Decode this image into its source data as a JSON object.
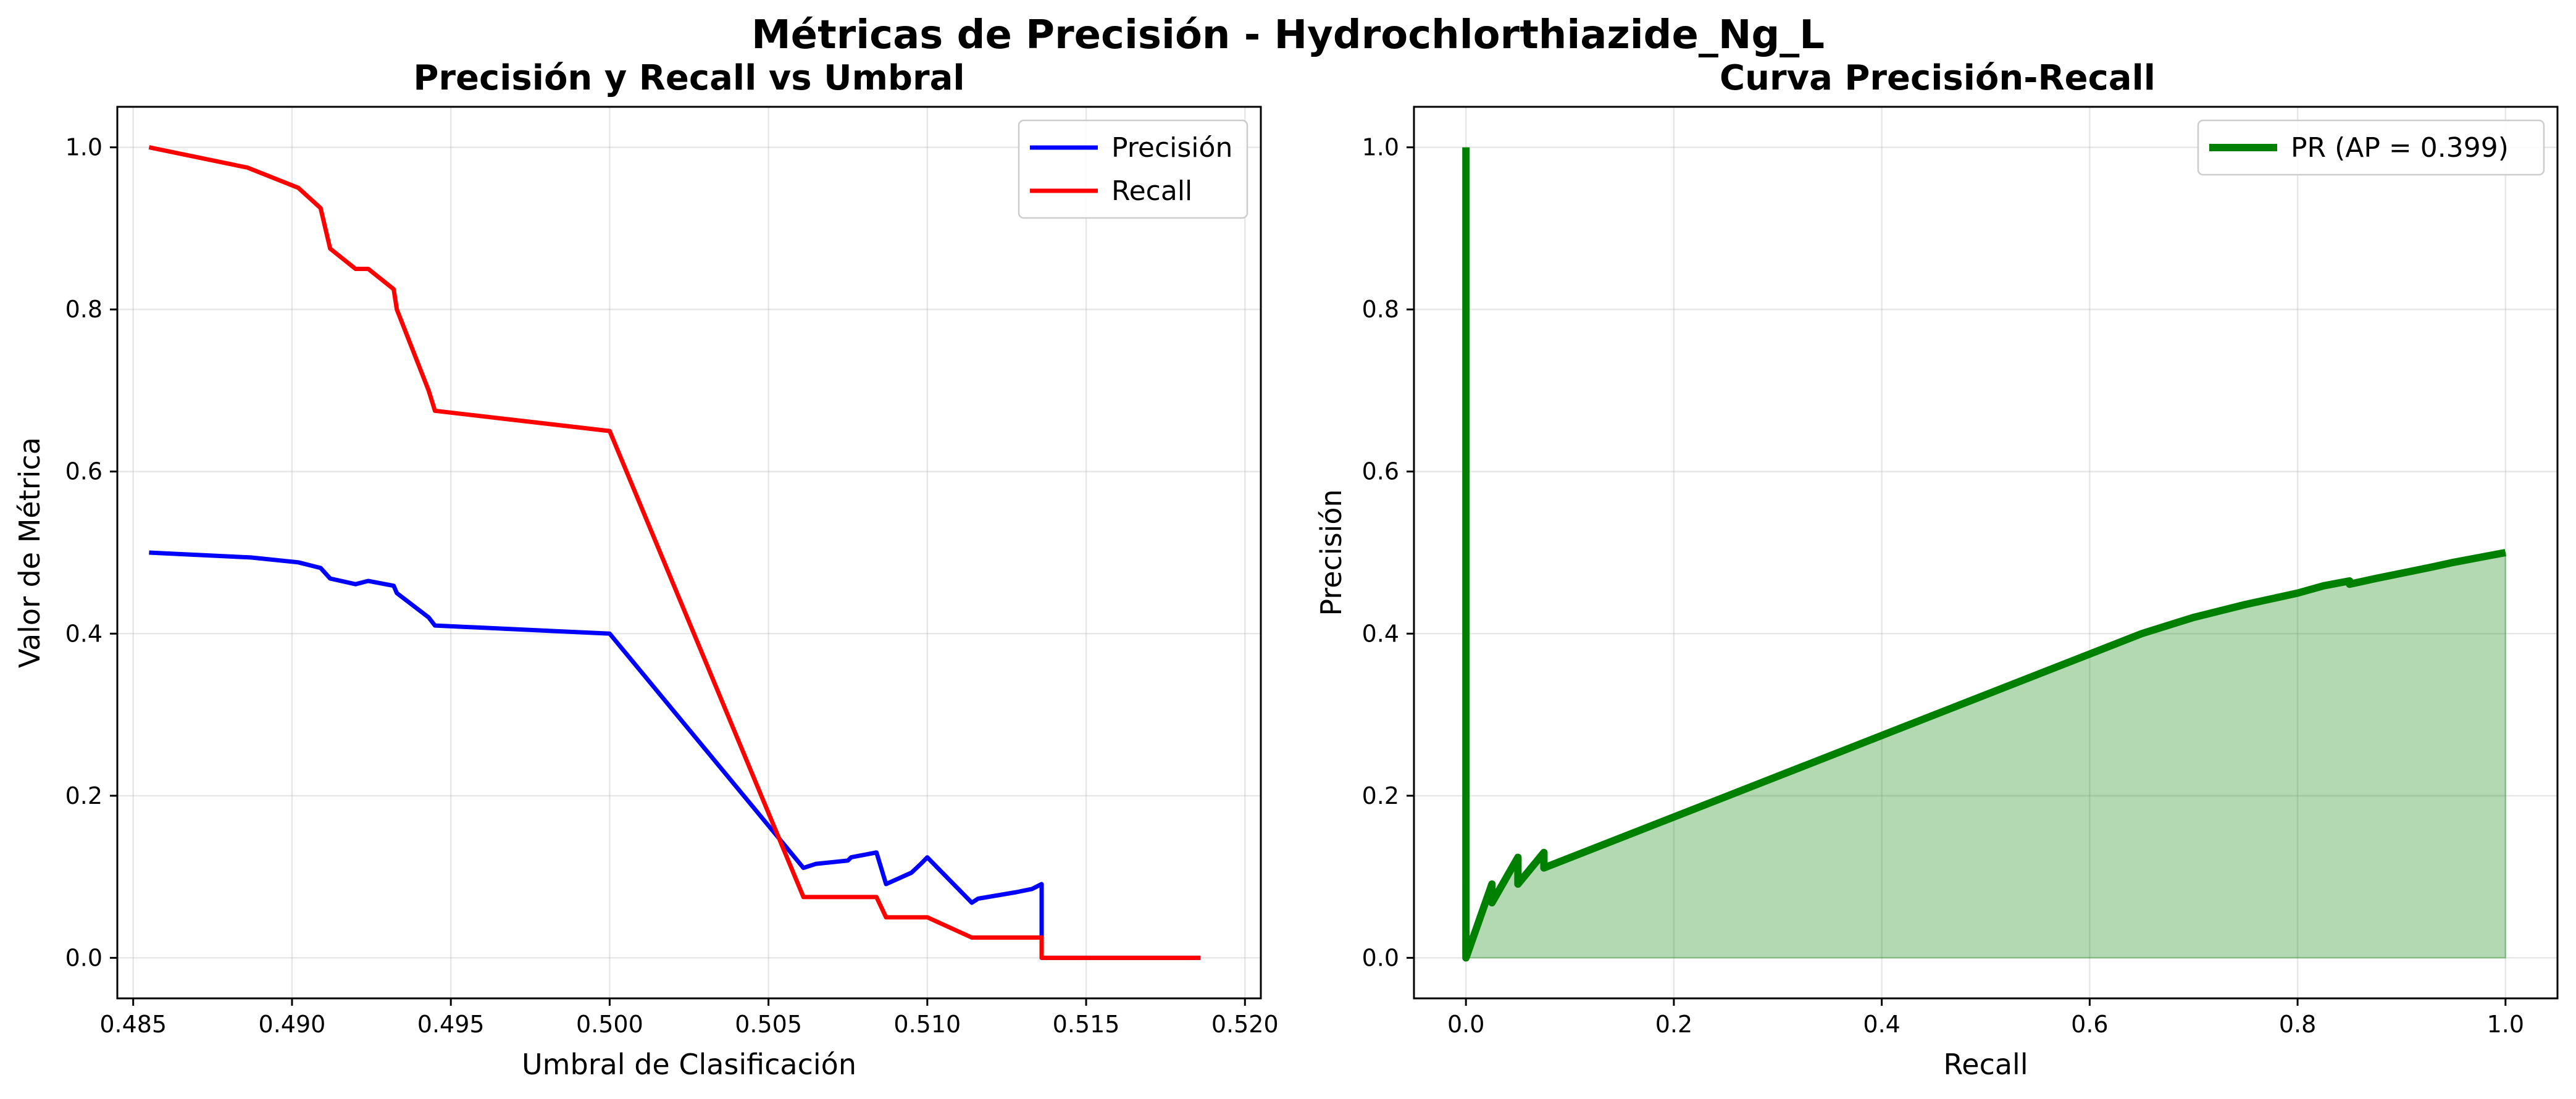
{
  "figure": {
    "suptitle": "Métricas de Precisión - Hydrochlorthiazide_Ng_L"
  },
  "chart_data": [
    {
      "type": "line",
      "title": "Precisión y Recall vs Umbral",
      "xlabel": "Umbral de Clasificación",
      "ylabel": "Valor de Métrica",
      "xlim": [
        0.4845,
        0.5205
      ],
      "ylim": [
        -0.05,
        1.05
      ],
      "xticks": [
        0.485,
        0.49,
        0.495,
        0.5,
        0.505,
        0.51,
        0.515,
        0.52
      ],
      "xtick_labels": [
        "0.485",
        "0.490",
        "0.495",
        "0.500",
        "0.505",
        "0.510",
        "0.515",
        "0.520"
      ],
      "yticks": [
        0.0,
        0.2,
        0.4,
        0.6,
        0.8,
        1.0
      ],
      "ytick_labels": [
        "0.0",
        "0.2",
        "0.4",
        "0.6",
        "0.8",
        "1.0"
      ],
      "grid": true,
      "legend_position": "upper right",
      "series": [
        {
          "name": "Precisión",
          "color": "#0000ff",
          "points": [
            [
              0.4855,
              0.5
            ],
            [
              0.4887,
              0.494
            ],
            [
              0.4902,
              0.488
            ],
            [
              0.4909,
              0.481
            ],
            [
              0.4912,
              0.468
            ],
            [
              0.492,
              0.461
            ],
            [
              0.4924,
              0.465
            ],
            [
              0.4932,
              0.459
            ],
            [
              0.4933,
              0.45
            ],
            [
              0.4943,
              0.42
            ],
            [
              0.4945,
              0.41
            ],
            [
              0.5,
              0.4
            ],
            [
              0.5061,
              0.111
            ],
            [
              0.5065,
              0.116
            ],
            [
              0.5075,
              0.12
            ],
            [
              0.5076,
              0.124
            ],
            [
              0.5084,
              0.13
            ],
            [
              0.5087,
              0.091
            ],
            [
              0.5095,
              0.105
            ],
            [
              0.5098,
              0.116
            ],
            [
              0.51,
              0.124
            ],
            [
              0.5114,
              0.068
            ],
            [
              0.5116,
              0.073
            ],
            [
              0.5128,
              0.081
            ],
            [
              0.5133,
              0.085
            ],
            [
              0.5136,
              0.091
            ],
            [
              0.5136,
              0.0
            ],
            [
              0.5186,
              0.0
            ]
          ]
        },
        {
          "name": "Recall",
          "color": "#ff0000",
          "points": [
            [
              0.4855,
              1.0
            ],
            [
              0.4886,
              0.975
            ],
            [
              0.4902,
              0.95
            ],
            [
              0.4909,
              0.925
            ],
            [
              0.4912,
              0.875
            ],
            [
              0.492,
              0.85
            ],
            [
              0.4924,
              0.85
            ],
            [
              0.4932,
              0.825
            ],
            [
              0.4933,
              0.8
            ],
            [
              0.4937,
              0.76
            ],
            [
              0.4943,
              0.7
            ],
            [
              0.4945,
              0.675
            ],
            [
              0.5,
              0.65
            ],
            [
              0.5061,
              0.075
            ],
            [
              0.5084,
              0.075
            ],
            [
              0.5087,
              0.05
            ],
            [
              0.51,
              0.05
            ],
            [
              0.5114,
              0.025
            ],
            [
              0.5136,
              0.025
            ],
            [
              0.5136,
              0.0
            ],
            [
              0.5186,
              0.0
            ]
          ]
        }
      ]
    },
    {
      "type": "area",
      "title": "Curva Precisión-Recall",
      "xlabel": "Recall",
      "ylabel": "Precisión",
      "xlim": [
        -0.05,
        1.05
      ],
      "ylim": [
        -0.05,
        1.05
      ],
      "xticks": [
        0.0,
        0.2,
        0.4,
        0.6,
        0.8,
        1.0
      ],
      "xtick_labels": [
        "0.0",
        "0.2",
        "0.4",
        "0.6",
        "0.8",
        "1.0"
      ],
      "yticks": [
        0.0,
        0.2,
        0.4,
        0.6,
        0.8,
        1.0
      ],
      "ytick_labels": [
        "0.0",
        "0.2",
        "0.4",
        "0.6",
        "0.8",
        "1.0"
      ],
      "grid": true,
      "legend_position": "upper right",
      "series": [
        {
          "name": "PR (AP = 0.399)",
          "color": "#008000",
          "fill_color": "#008000",
          "fill_opacity": 0.3,
          "points": [
            [
              0.0,
              1.0
            ],
            [
              0.0,
              0.0
            ],
            [
              0.025,
              0.091
            ],
            [
              0.025,
              0.068
            ],
            [
              0.05,
              0.124
            ],
            [
              0.05,
              0.091
            ],
            [
              0.075,
              0.13
            ],
            [
              0.075,
              0.111
            ],
            [
              0.65,
              0.4
            ],
            [
              0.675,
              0.41
            ],
            [
              0.7,
              0.42
            ],
            [
              0.75,
              0.436
            ],
            [
              0.8,
              0.45
            ],
            [
              0.825,
              0.459
            ],
            [
              0.85,
              0.465
            ],
            [
              0.85,
              0.461
            ],
            [
              0.875,
              0.468
            ],
            [
              0.925,
              0.481
            ],
            [
              0.95,
              0.488
            ],
            [
              0.975,
              0.494
            ],
            [
              1.0,
              0.5
            ]
          ]
        }
      ]
    }
  ]
}
